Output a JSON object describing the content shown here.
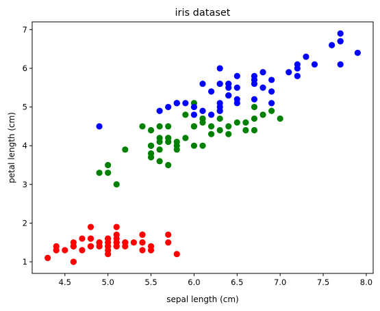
{
  "chart_data": {
    "type": "scatter",
    "title": "iris dataset",
    "xlabel": "sepal length (cm)",
    "ylabel": "petal length (cm)",
    "xlim": [
      4.12,
      8.08
    ],
    "ylim": [
      0.7,
      7.2
    ],
    "xticks": [
      4.5,
      5.0,
      5.5,
      6.0,
      6.5,
      7.0,
      7.5,
      8.0
    ],
    "xtick_labels": [
      "4.5",
      "5.0",
      "5.5",
      "6.0",
      "6.5",
      "7.0",
      "7.5",
      "8.0"
    ],
    "yticks": [
      1,
      2,
      3,
      4,
      5,
      6,
      7
    ],
    "ytick_labels": [
      "1",
      "2",
      "3",
      "4",
      "5",
      "6",
      "7"
    ],
    "grid": false,
    "legend": "none",
    "series": [
      {
        "color": "#ff0000",
        "points": [
          [
            5.1,
            1.4
          ],
          [
            4.9,
            1.4
          ],
          [
            4.7,
            1.3
          ],
          [
            4.6,
            1.5
          ],
          [
            5.0,
            1.4
          ],
          [
            5.4,
            1.7
          ],
          [
            4.6,
            1.4
          ],
          [
            5.0,
            1.5
          ],
          [
            4.4,
            1.4
          ],
          [
            4.9,
            1.5
          ],
          [
            5.4,
            1.5
          ],
          [
            4.8,
            1.6
          ],
          [
            4.8,
            1.4
          ],
          [
            4.3,
            1.1
          ],
          [
            5.8,
            1.2
          ],
          [
            5.7,
            1.5
          ],
          [
            5.4,
            1.3
          ],
          [
            5.1,
            1.4
          ],
          [
            5.7,
            1.7
          ],
          [
            5.1,
            1.5
          ],
          [
            5.4,
            1.7
          ],
          [
            5.1,
            1.5
          ],
          [
            4.6,
            1.0
          ],
          [
            5.1,
            1.7
          ],
          [
            4.8,
            1.9
          ],
          [
            5.0,
            1.6
          ],
          [
            5.0,
            1.6
          ],
          [
            5.2,
            1.5
          ],
          [
            5.2,
            1.4
          ],
          [
            4.7,
            1.6
          ],
          [
            4.8,
            1.6
          ],
          [
            5.4,
            1.5
          ],
          [
            5.2,
            1.5
          ],
          [
            5.5,
            1.4
          ],
          [
            4.9,
            1.5
          ],
          [
            5.0,
            1.2
          ],
          [
            5.5,
            1.3
          ],
          [
            4.9,
            1.4
          ],
          [
            4.4,
            1.3
          ],
          [
            5.1,
            1.5
          ],
          [
            5.0,
            1.3
          ],
          [
            4.5,
            1.3
          ],
          [
            4.4,
            1.3
          ],
          [
            5.0,
            1.6
          ],
          [
            5.1,
            1.9
          ],
          [
            4.8,
            1.4
          ],
          [
            5.1,
            1.6
          ],
          [
            4.6,
            1.4
          ],
          [
            5.3,
            1.5
          ],
          [
            5.0,
            1.4
          ]
        ]
      },
      {
        "color": "#008000",
        "points": [
          [
            7.0,
            4.7
          ],
          [
            6.4,
            4.5
          ],
          [
            6.9,
            4.9
          ],
          [
            5.5,
            4.0
          ],
          [
            6.5,
            4.6
          ],
          [
            5.7,
            4.5
          ],
          [
            6.3,
            4.7
          ],
          [
            4.9,
            3.3
          ],
          [
            6.6,
            4.6
          ],
          [
            5.2,
            3.9
          ],
          [
            5.0,
            3.5
          ],
          [
            5.9,
            4.2
          ],
          [
            6.0,
            4.0
          ],
          [
            6.1,
            4.7
          ],
          [
            5.6,
            3.6
          ],
          [
            6.7,
            4.4
          ],
          [
            5.6,
            4.5
          ],
          [
            5.8,
            4.1
          ],
          [
            6.2,
            4.5
          ],
          [
            5.6,
            3.9
          ],
          [
            5.9,
            4.8
          ],
          [
            6.1,
            4.0
          ],
          [
            6.3,
            4.9
          ],
          [
            6.1,
            4.7
          ],
          [
            6.4,
            4.3
          ],
          [
            6.6,
            4.4
          ],
          [
            6.8,
            4.8
          ],
          [
            6.7,
            5.0
          ],
          [
            6.0,
            4.5
          ],
          [
            5.7,
            3.5
          ],
          [
            5.5,
            3.8
          ],
          [
            5.5,
            3.7
          ],
          [
            5.8,
            3.9
          ],
          [
            6.0,
            5.1
          ],
          [
            5.4,
            4.5
          ],
          [
            6.0,
            4.5
          ],
          [
            6.7,
            4.7
          ],
          [
            6.3,
            4.4
          ],
          [
            5.6,
            4.1
          ],
          [
            5.5,
            4.0
          ],
          [
            5.5,
            4.4
          ],
          [
            6.1,
            4.6
          ],
          [
            5.8,
            4.0
          ],
          [
            5.0,
            3.3
          ],
          [
            5.6,
            4.2
          ],
          [
            5.7,
            4.2
          ],
          [
            5.7,
            4.2
          ],
          [
            6.2,
            4.3
          ],
          [
            5.1,
            3.0
          ],
          [
            5.7,
            4.1
          ]
        ]
      },
      {
        "color": "#0000ff",
        "points": [
          [
            6.3,
            6.0
          ],
          [
            5.8,
            5.1
          ],
          [
            7.1,
            5.9
          ],
          [
            6.3,
            5.6
          ],
          [
            6.5,
            5.8
          ],
          [
            7.6,
            6.6
          ],
          [
            4.9,
            4.5
          ],
          [
            7.3,
            6.3
          ],
          [
            6.7,
            5.8
          ],
          [
            7.2,
            6.1
          ],
          [
            6.5,
            5.1
          ],
          [
            6.4,
            5.3
          ],
          [
            6.8,
            5.5
          ],
          [
            5.7,
            5.0
          ],
          [
            5.8,
            5.1
          ],
          [
            6.4,
            5.3
          ],
          [
            6.5,
            5.5
          ],
          [
            7.7,
            6.7
          ],
          [
            7.7,
            6.9
          ],
          [
            6.0,
            5.0
          ],
          [
            6.9,
            5.7
          ],
          [
            5.6,
            4.9
          ],
          [
            7.7,
            6.7
          ],
          [
            6.3,
            4.9
          ],
          [
            6.7,
            5.7
          ],
          [
            7.2,
            6.0
          ],
          [
            6.2,
            4.8
          ],
          [
            6.1,
            4.9
          ],
          [
            6.4,
            5.6
          ],
          [
            7.2,
            5.8
          ],
          [
            7.4,
            6.1
          ],
          [
            7.9,
            6.4
          ],
          [
            6.4,
            5.6
          ],
          [
            6.3,
            5.1
          ],
          [
            6.1,
            5.6
          ],
          [
            7.7,
            6.1
          ],
          [
            6.3,
            5.6
          ],
          [
            6.4,
            5.5
          ],
          [
            6.0,
            4.8
          ],
          [
            6.9,
            5.4
          ],
          [
            6.7,
            5.6
          ],
          [
            6.9,
            5.1
          ],
          [
            5.8,
            5.1
          ],
          [
            6.8,
            5.9
          ],
          [
            6.7,
            5.7
          ],
          [
            6.7,
            5.2
          ],
          [
            6.3,
            5.0
          ],
          [
            6.5,
            5.2
          ],
          [
            6.2,
            5.4
          ],
          [
            5.9,
            5.1
          ]
        ]
      }
    ]
  }
}
